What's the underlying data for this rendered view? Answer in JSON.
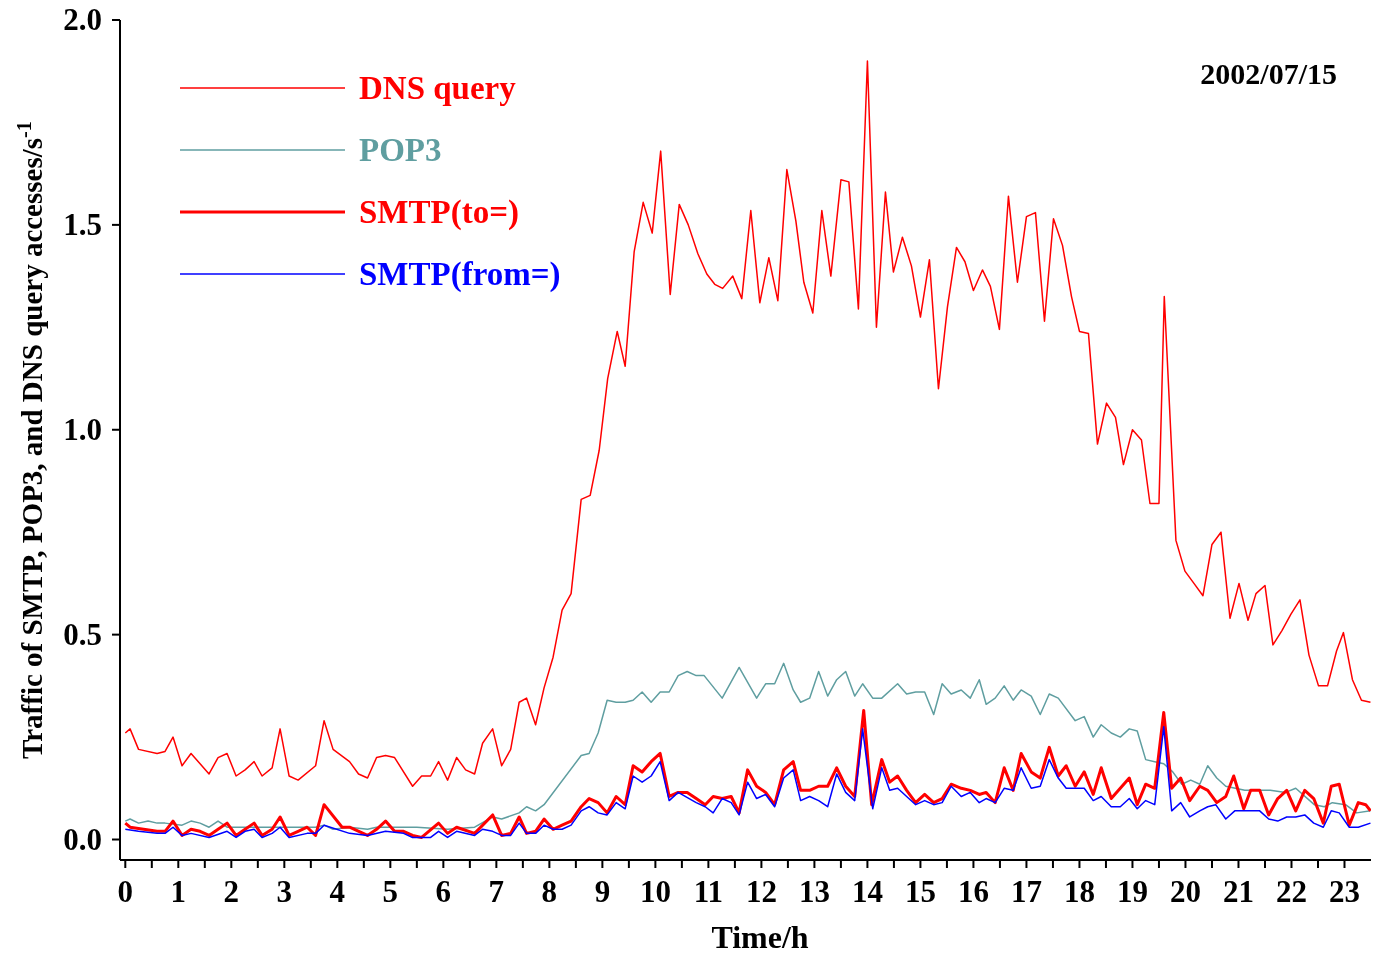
{
  "chart_data": {
    "type": "line",
    "xlabel": "Time/h",
    "ylabel": "Traffic of SMTP, POP3, and DNS query accesses/s$^{-1}$",
    "annotations": [
      "2002/07/15"
    ],
    "xlim": [
      -0.1,
      23.5
    ],
    "ylim": [
      -0.05,
      2.0
    ],
    "xticks": [
      0,
      1,
      2,
      3,
      4,
      5,
      6,
      7,
      8,
      9,
      10,
      11,
      12,
      13,
      14,
      15,
      16,
      17,
      18,
      19,
      20,
      21,
      22,
      23,
      {
        "value": 0.5,
        "label": null
      },
      {
        "value": 1.5,
        "label": null
      },
      {
        "value": 2.5,
        "label": null
      },
      {
        "value": 3.5,
        "label": null
      },
      {
        "value": 4.5,
        "label": null
      },
      {
        "value": 5.5,
        "label": null
      },
      {
        "value": 6.5,
        "label": null
      },
      {
        "value": 7.5,
        "label": null
      },
      {
        "value": 8.5,
        "label": null
      },
      {
        "value": 9.5,
        "label": null
      },
      {
        "value": 10.5,
        "label": null
      },
      {
        "value": 11.5,
        "label": null
      },
      {
        "value": 12.5,
        "label": null
      },
      {
        "value": 13.5,
        "label": null
      },
      {
        "value": 14.5,
        "label": null
      },
      {
        "value": 15.5,
        "label": null
      },
      {
        "value": 16.5,
        "label": null
      },
      {
        "value": 17.5,
        "label": null
      },
      {
        "value": 18.5,
        "label": null
      },
      {
        "value": 19.5,
        "label": null
      },
      {
        "value": 20.5,
        "label": null
      },
      {
        "value": 21.5,
        "label": null
      },
      {
        "value": 22.5,
        "label": null
      }
    ],
    "yticks": [
      {
        "value": 0,
        "label": "0.0"
      },
      {
        "value": 0.5,
        "label": "0.5"
      },
      {
        "value": 1,
        "label": "1.0"
      },
      {
        "value": 1.5,
        "label": "1.5"
      },
      {
        "value": 2,
        "label": "2.0"
      }
    ],
    "grid": false,
    "legend": "top left",
    "marker": "none",
    "line_style": "solid",
    "series": [
      {
        "name": "DNS query",
        "color": "#ff0000",
        "x": [
          0,
          0.09,
          0.25,
          0.6,
          0.75,
          0.9,
          1.07,
          1.24,
          1.58,
          1.75,
          1.92,
          2.09,
          2.26,
          2.43,
          2.58,
          2.77,
          2.92,
          3.09,
          3.26,
          3.59,
          3.75,
          3.92,
          4.23,
          4.4,
          4.57,
          4.74,
          4.91,
          5.08,
          5.42,
          5.59,
          5.76,
          5.91,
          6.08,
          6.25,
          6.42,
          6.59,
          6.74,
          6.93,
          7.1,
          7.27,
          7.43,
          7.57,
          7.74,
          7.9,
          8.07,
          8.24,
          8.41,
          8.6,
          8.77,
          8.94,
          9.1,
          9.28,
          9.43,
          9.6,
          9.77,
          9.94,
          10.1,
          10.28,
          10.45,
          10.62,
          10.8,
          10.97,
          11.12,
          11.27,
          11.46,
          11.63,
          11.8,
          11.97,
          12.14,
          12.31,
          12.48,
          12.65,
          12.8,
          12.97,
          13.14,
          13.31,
          13.5,
          13.65,
          13.83,
          14.0,
          14.17,
          14.34,
          14.49,
          14.66,
          14.83,
          15.0,
          15.17,
          15.34,
          15.51,
          15.68,
          15.84,
          16.0,
          16.17,
          16.32,
          16.49,
          16.66,
          16.83,
          17.0,
          17.17,
          17.34,
          17.51,
          17.68,
          17.85,
          18.0,
          18.17,
          18.34,
          18.51,
          18.68,
          18.83,
          19.0,
          19.17,
          19.33,
          19.5,
          19.6,
          19.82,
          19.99,
          20.16,
          20.33,
          20.5,
          20.67,
          20.84,
          21.01,
          21.18,
          21.33,
          21.5,
          21.65,
          21.82,
          21.99,
          22.16,
          22.33,
          22.51,
          22.68,
          22.85,
          22.98,
          23.15,
          23.32,
          23.49
        ],
        "values": [
          0.26,
          0.27,
          0.22,
          0.21,
          0.215,
          0.25,
          0.18,
          0.21,
          0.16,
          0.2,
          0.21,
          0.155,
          0.17,
          0.19,
          0.155,
          0.175,
          0.27,
          0.155,
          0.145,
          0.18,
          0.29,
          0.22,
          0.19,
          0.16,
          0.15,
          0.2,
          0.205,
          0.2,
          0.13,
          0.155,
          0.155,
          0.19,
          0.145,
          0.2,
          0.17,
          0.16,
          0.235,
          0.27,
          0.18,
          0.22,
          0.335,
          0.345,
          0.28,
          0.37,
          0.445,
          0.56,
          0.6,
          0.83,
          0.84,
          0.95,
          1.125,
          1.24,
          1.155,
          1.435,
          1.555,
          1.48,
          1.68,
          1.33,
          1.55,
          1.5,
          1.43,
          1.38,
          1.355,
          1.345,
          1.375,
          1.32,
          1.535,
          1.31,
          1.42,
          1.315,
          1.635,
          1.51,
          1.36,
          1.285,
          1.535,
          1.375,
          1.61,
          1.605,
          1.295,
          1.9,
          1.25,
          1.58,
          1.385,
          1.47,
          1.4,
          1.275,
          1.415,
          1.1,
          1.3,
          1.445,
          1.41,
          1.34,
          1.39,
          1.35,
          1.245,
          1.57,
          1.36,
          1.52,
          1.53,
          1.265,
          1.515,
          1.45,
          1.325,
          1.24,
          1.235,
          0.965,
          1.065,
          1.03,
          0.915,
          1.0,
          0.975,
          0.82,
          0.82,
          1.325,
          0.73,
          0.655,
          0.625,
          0.595,
          0.72,
          0.75,
          0.54,
          0.625,
          0.535,
          0.6,
          0.62,
          0.475,
          0.51,
          0.55,
          0.585,
          0.45,
          0.375,
          0.375,
          0.46,
          0.505,
          0.39,
          0.34,
          0.335
        ]
      },
      {
        "name": "POP3",
        "color": "#5f9ea0",
        "x": [
          0,
          0.09,
          0.25,
          0.43,
          0.6,
          0.75,
          1.07,
          1.24,
          1.41,
          1.58,
          1.75,
          1.92,
          2.5,
          3.0,
          3.59,
          3.75,
          3.92,
          4.23,
          4.57,
          4.74,
          5.5,
          6.08,
          6.59,
          6.93,
          7.1,
          7.43,
          7.57,
          7.74,
          7.9,
          8.6,
          8.75,
          8.92,
          9.09,
          9.26,
          9.43,
          9.58,
          9.75,
          9.92,
          10.09,
          10.26,
          10.43,
          10.6,
          10.77,
          10.92,
          11.26,
          11.58,
          11.91,
          12.08,
          12.25,
          12.42,
          12.6,
          12.74,
          12.91,
          13.08,
          13.25,
          13.42,
          13.59,
          13.76,
          13.91,
          14.1,
          14.27,
          14.57,
          14.74,
          14.91,
          15.08,
          15.25,
          15.41,
          15.58,
          15.77,
          15.94,
          16.11,
          16.24,
          16.41,
          16.58,
          16.75,
          16.9,
          17.09,
          17.26,
          17.43,
          17.6,
          17.92,
          18.09,
          18.26,
          18.41,
          18.6,
          18.77,
          18.94,
          19.09,
          19.25,
          19.42,
          19.59,
          19.76,
          19.93,
          20.1,
          20.27,
          20.42,
          20.59,
          20.76,
          21.12,
          21.6,
          21.89,
          22.08,
          22.43,
          22.62,
          22.77,
          23.02,
          23.23,
          23.49
        ],
        "values": [
          0.045,
          0.05,
          0.04,
          0.045,
          0.04,
          0.04,
          0.035,
          0.045,
          0.04,
          0.03,
          0.045,
          0.03,
          0.03,
          0.03,
          0.03,
          0.035,
          0.025,
          0.03,
          0.025,
          0.03,
          0.03,
          0.025,
          0.03,
          0.055,
          0.05,
          0.065,
          0.08,
          0.07,
          0.085,
          0.205,
          0.21,
          0.26,
          0.34,
          0.335,
          0.335,
          0.34,
          0.36,
          0.335,
          0.36,
          0.36,
          0.4,
          0.41,
          0.4,
          0.4,
          0.345,
          0.42,
          0.345,
          0.38,
          0.38,
          0.43,
          0.365,
          0.335,
          0.345,
          0.41,
          0.35,
          0.39,
          0.41,
          0.35,
          0.38,
          0.345,
          0.345,
          0.38,
          0.355,
          0.36,
          0.36,
          0.305,
          0.38,
          0.355,
          0.365,
          0.345,
          0.39,
          0.33,
          0.345,
          0.375,
          0.34,
          0.365,
          0.35,
          0.305,
          0.355,
          0.345,
          0.29,
          0.3,
          0.25,
          0.28,
          0.26,
          0.25,
          0.27,
          0.265,
          0.195,
          0.19,
          0.185,
          0.165,
          0.135,
          0.145,
          0.135,
          0.18,
          0.15,
          0.13,
          0.12,
          0.12,
          0.115,
          0.125,
          0.085,
          0.08,
          0.09,
          0.085,
          0.065,
          0.07
        ]
      },
      {
        "name": "SMTP(to=)",
        "color": "#ff0000",
        "x": [
          0,
          0.09,
          0.6,
          0.75,
          0.9,
          1.07,
          1.24,
          1.41,
          1.58,
          1.75,
          1.92,
          2.09,
          2.26,
          2.43,
          2.58,
          2.77,
          2.92,
          3.09,
          3.26,
          3.43,
          3.59,
          3.75,
          4.09,
          4.23,
          4.57,
          4.74,
          4.91,
          5.08,
          5.25,
          5.42,
          5.59,
          5.91,
          6.08,
          6.25,
          6.59,
          6.93,
          7.1,
          7.27,
          7.43,
          7.57,
          7.74,
          7.9,
          8.07,
          8.24,
          8.41,
          8.6,
          8.75,
          8.92,
          9.09,
          9.26,
          9.43,
          9.58,
          9.75,
          9.92,
          10.09,
          10.26,
          10.43,
          10.6,
          10.77,
          10.94,
          11.09,
          11.26,
          11.43,
          11.58,
          11.74,
          11.91,
          12.08,
          12.25,
          12.42,
          12.6,
          12.74,
          12.91,
          13.08,
          13.25,
          13.42,
          13.59,
          13.76,
          13.93,
          14.08,
          14.27,
          14.42,
          14.57,
          14.74,
          14.91,
          15.08,
          15.25,
          15.41,
          15.58,
          15.77,
          15.94,
          16.11,
          16.24,
          16.41,
          16.58,
          16.75,
          16.9,
          17.09,
          17.26,
          17.43,
          17.6,
          17.75,
          17.92,
          18.09,
          18.26,
          18.41,
          18.6,
          18.77,
          18.94,
          19.09,
          19.25,
          19.42,
          19.59,
          19.74,
          19.91,
          20.08,
          20.27,
          20.42,
          20.59,
          20.76,
          20.91,
          21.1,
          21.23,
          21.4,
          21.57,
          21.74,
          21.91,
          22.08,
          22.25,
          22.42,
          22.6,
          22.75,
          22.9,
          23.09,
          23.26,
          23.4,
          23.49
        ],
        "values": [
          0.04,
          0.03,
          0.02,
          0.02,
          0.045,
          0.01,
          0.025,
          0.02,
          0.01,
          0.025,
          0.04,
          0.01,
          0.025,
          0.04,
          0.01,
          0.025,
          0.055,
          0.01,
          0.02,
          0.03,
          0.01,
          0.085,
          0.03,
          0.03,
          0.01,
          0.025,
          0.045,
          0.02,
          0.02,
          0.01,
          0.005,
          0.04,
          0.015,
          0.03,
          0.015,
          0.06,
          0.01,
          0.015,
          0.055,
          0.015,
          0.02,
          0.05,
          0.025,
          0.035,
          0.045,
          0.08,
          0.1,
          0.09,
          0.065,
          0.105,
          0.085,
          0.18,
          0.165,
          0.19,
          0.21,
          0.105,
          0.115,
          0.115,
          0.1,
          0.085,
          0.105,
          0.1,
          0.105,
          0.065,
          0.17,
          0.13,
          0.115,
          0.085,
          0.17,
          0.19,
          0.12,
          0.12,
          0.13,
          0.13,
          0.175,
          0.13,
          0.105,
          0.315,
          0.085,
          0.195,
          0.14,
          0.155,
          0.12,
          0.09,
          0.11,
          0.09,
          0.1,
          0.135,
          0.125,
          0.12,
          0.11,
          0.115,
          0.09,
          0.175,
          0.12,
          0.21,
          0.165,
          0.15,
          0.225,
          0.155,
          0.18,
          0.13,
          0.165,
          0.11,
          0.175,
          0.1,
          0.125,
          0.15,
          0.085,
          0.135,
          0.125,
          0.31,
          0.125,
          0.15,
          0.095,
          0.13,
          0.12,
          0.09,
          0.105,
          0.155,
          0.075,
          0.12,
          0.12,
          0.06,
          0.1,
          0.12,
          0.07,
          0.12,
          0.1,
          0.04,
          0.13,
          0.135,
          0.035,
          0.09,
          0.085,
          0.07
        ]
      },
      {
        "name": "SMTP(from=)",
        "color": "#0000ff",
        "x": [
          0,
          0.25,
          0.6,
          0.75,
          0.9,
          1.07,
          1.24,
          1.58,
          1.92,
          2.09,
          2.26,
          2.43,
          2.58,
          2.77,
          2.92,
          3.09,
          3.43,
          3.59,
          3.75,
          4.23,
          4.57,
          4.91,
          5.25,
          5.42,
          5.76,
          5.91,
          6.08,
          6.25,
          6.59,
          6.74,
          6.93,
          7.1,
          7.27,
          7.43,
          7.57,
          7.74,
          7.9,
          8.07,
          8.24,
          8.41,
          8.6,
          8.75,
          8.92,
          9.09,
          9.26,
          9.43,
          9.58,
          9.75,
          9.92,
          10.09,
          10.26,
          10.43,
          10.77,
          10.94,
          11.09,
          11.26,
          11.43,
          11.58,
          11.74,
          11.91,
          12.08,
          12.25,
          12.42,
          12.6,
          12.74,
          12.91,
          13.08,
          13.25,
          13.42,
          13.59,
          13.76,
          13.91,
          14.1,
          14.27,
          14.42,
          14.57,
          14.91,
          15.08,
          15.25,
          15.41,
          15.58,
          15.77,
          15.94,
          16.11,
          16.24,
          16.41,
          16.58,
          16.75,
          16.9,
          17.09,
          17.26,
          17.43,
          17.6,
          17.75,
          17.92,
          18.09,
          18.26,
          18.41,
          18.6,
          18.77,
          18.94,
          19.09,
          19.25,
          19.42,
          19.59,
          19.74,
          19.91,
          20.08,
          20.27,
          20.42,
          20.57,
          20.76,
          20.93,
          21.4,
          21.57,
          21.74,
          21.91,
          22.08,
          22.25,
          22.42,
          22.6,
          22.75,
          22.9,
          23.09,
          23.26,
          23.49
        ],
        "values": [
          0.025,
          0.02,
          0.015,
          0.015,
          0.03,
          0.01,
          0.015,
          0.005,
          0.02,
          0.005,
          0.02,
          0.025,
          0.005,
          0.015,
          0.03,
          0.005,
          0.015,
          0.015,
          0.035,
          0.015,
          0.01,
          0.02,
          0.015,
          0.005,
          0.005,
          0.02,
          0.005,
          0.02,
          0.01,
          0.025,
          0.02,
          0.01,
          0.01,
          0.04,
          0.015,
          0.015,
          0.035,
          0.025,
          0.025,
          0.035,
          0.07,
          0.08,
          0.065,
          0.06,
          0.09,
          0.075,
          0.155,
          0.14,
          0.155,
          0.19,
          0.095,
          0.115,
          0.09,
          0.08,
          0.065,
          0.1,
          0.09,
          0.06,
          0.14,
          0.1,
          0.11,
          0.08,
          0.15,
          0.17,
          0.095,
          0.105,
          0.095,
          0.08,
          0.16,
          0.115,
          0.095,
          0.27,
          0.075,
          0.175,
          0.12,
          0.125,
          0.085,
          0.095,
          0.085,
          0.09,
          0.13,
          0.105,
          0.115,
          0.09,
          0.1,
          0.09,
          0.125,
          0.12,
          0.175,
          0.125,
          0.13,
          0.195,
          0.15,
          0.125,
          0.125,
          0.125,
          0.095,
          0.105,
          0.08,
          0.08,
          0.1,
          0.075,
          0.095,
          0.085,
          0.275,
          0.07,
          0.09,
          0.055,
          0.07,
          0.08,
          0.085,
          0.05,
          0.07,
          0.07,
          0.05,
          0.045,
          0.055,
          0.055,
          0.06,
          0.04,
          0.03,
          0.07,
          0.065,
          0.03,
          0.03,
          0.04
        ]
      }
    ]
  }
}
